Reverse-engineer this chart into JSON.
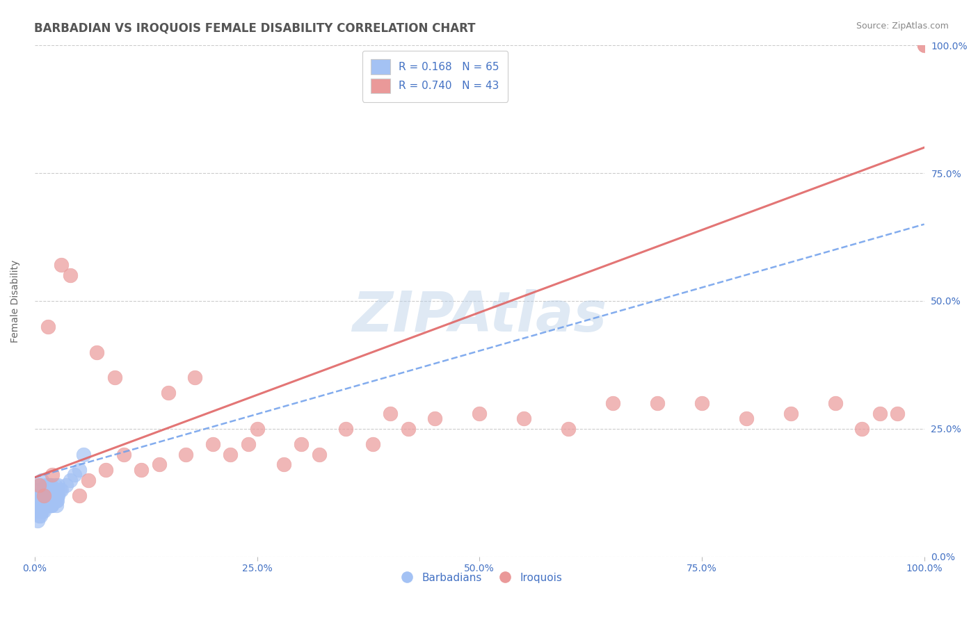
{
  "title": "BARBADIAN VS IROQUOIS FEMALE DISABILITY CORRELATION CHART",
  "source": "Source: ZipAtlas.com",
  "ylabel": "Female Disability",
  "watermark": "ZIPAtlas",
  "legend_r1": "R = 0.168   N = 65",
  "legend_r2": "R = 0.740   N = 43",
  "legend_label1": "Barbadians",
  "legend_label2": "Iroquois",
  "blue_color": "#a4c2f4",
  "pink_color": "#ea9999",
  "blue_line_color": "#6d9eeb",
  "pink_line_color": "#e06666",
  "axis_label_color": "#4472c4",
  "title_color": "#555555",
  "barbadian_x": [
    0.002,
    0.003,
    0.004,
    0.005,
    0.006,
    0.007,
    0.008,
    0.009,
    0.01,
    0.011,
    0.012,
    0.013,
    0.014,
    0.015,
    0.016,
    0.017,
    0.018,
    0.019,
    0.02,
    0.021,
    0.022,
    0.023,
    0.024,
    0.025,
    0.026,
    0.003,
    0.005,
    0.007,
    0.009,
    0.011,
    0.013,
    0.015,
    0.017,
    0.019,
    0.021,
    0.023,
    0.025,
    0.004,
    0.006,
    0.008,
    0.01,
    0.012,
    0.014,
    0.016,
    0.018,
    0.02,
    0.022,
    0.024,
    0.026,
    0.028,
    0.005,
    0.01,
    0.015,
    0.02,
    0.025,
    0.03,
    0.035,
    0.04,
    0.045,
    0.05,
    0.003,
    0.006,
    0.009,
    0.012,
    0.055
  ],
  "barbadian_y": [
    0.12,
    0.1,
    0.13,
    0.11,
    0.14,
    0.09,
    0.15,
    0.1,
    0.13,
    0.12,
    0.11,
    0.14,
    0.1,
    0.13,
    0.12,
    0.11,
    0.14,
    0.1,
    0.13,
    0.12,
    0.11,
    0.14,
    0.1,
    0.13,
    0.12,
    0.09,
    0.11,
    0.12,
    0.1,
    0.13,
    0.12,
    0.11,
    0.14,
    0.1,
    0.13,
    0.12,
    0.11,
    0.1,
    0.12,
    0.11,
    0.13,
    0.12,
    0.11,
    0.14,
    0.1,
    0.13,
    0.12,
    0.11,
    0.14,
    0.13,
    0.08,
    0.09,
    0.1,
    0.11,
    0.12,
    0.13,
    0.14,
    0.15,
    0.16,
    0.17,
    0.07,
    0.08,
    0.09,
    0.1,
    0.2
  ],
  "iroquois_x": [
    0.005,
    0.01,
    0.015,
    0.02,
    0.03,
    0.04,
    0.05,
    0.06,
    0.07,
    0.08,
    0.09,
    0.1,
    0.12,
    0.14,
    0.15,
    0.17,
    0.18,
    0.2,
    0.22,
    0.24,
    0.25,
    0.28,
    0.3,
    0.32,
    0.35,
    0.38,
    0.4,
    0.42,
    0.45,
    0.5,
    0.55,
    0.6,
    0.65,
    0.7,
    0.75,
    0.8,
    0.85,
    0.9,
    0.93,
    0.95,
    0.97,
    1.0,
    1.0
  ],
  "iroquois_y": [
    0.14,
    0.12,
    0.45,
    0.16,
    0.57,
    0.55,
    0.12,
    0.15,
    0.4,
    0.17,
    0.35,
    0.2,
    0.17,
    0.18,
    0.32,
    0.2,
    0.35,
    0.22,
    0.2,
    0.22,
    0.25,
    0.18,
    0.22,
    0.2,
    0.25,
    0.22,
    0.28,
    0.25,
    0.27,
    0.28,
    0.27,
    0.25,
    0.3,
    0.3,
    0.3,
    0.27,
    0.28,
    0.3,
    0.25,
    0.28,
    0.28,
    1.0,
    1.0
  ],
  "blue_line_x0": 0.0,
  "blue_line_y0": 0.155,
  "blue_line_x1": 1.0,
  "blue_line_y1": 0.65,
  "pink_line_x0": 0.0,
  "pink_line_y0": 0.155,
  "pink_line_x1": 1.0,
  "pink_line_y1": 0.8,
  "xlim": [
    0.0,
    1.0
  ],
  "ylim": [
    0.0,
    1.0
  ],
  "xtick_labels": [
    "0.0%",
    "25.0%",
    "50.0%",
    "75.0%",
    "100.0%"
  ],
  "xtick_vals": [
    0.0,
    0.25,
    0.5,
    0.75,
    1.0
  ],
  "ytick_labels": [
    "0.0%",
    "25.0%",
    "50.0%",
    "75.0%",
    "100.0%"
  ],
  "ytick_vals": [
    0.0,
    0.25,
    0.5,
    0.75,
    1.0
  ],
  "background_color": "#ffffff",
  "grid_color": "#cccccc"
}
